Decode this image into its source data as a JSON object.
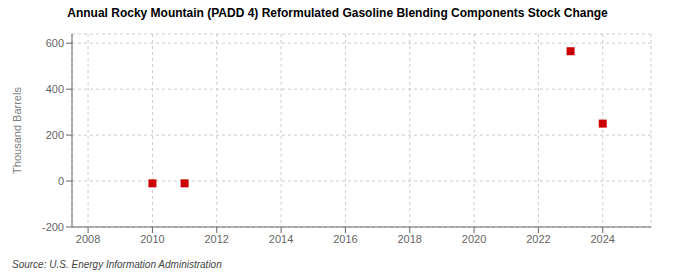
{
  "chart_data": {
    "type": "scatter",
    "title": "Annual Rocky Mountain (PADD 4) Reformulated Gasoline Blending Components Stock Change",
    "y_label": "Thousand Barrels",
    "annotations": [
      "Source: U.S. Energy Information Administration"
    ],
    "x": [
      2010,
      2011,
      2023,
      2024
    ],
    "values": [
      -10,
      -10,
      565,
      250
    ],
    "color": "#cc0000",
    "marker": "square",
    "xlim": [
      2007.5,
      2025.5
    ],
    "ylim": [
      -200,
      640
    ],
    "xticks": [
      2008,
      2010,
      2012,
      2014,
      2016,
      2018,
      2020,
      2022,
      2024
    ],
    "yticks": [
      -200,
      0,
      200,
      400,
      600
    ],
    "grid": true
  }
}
